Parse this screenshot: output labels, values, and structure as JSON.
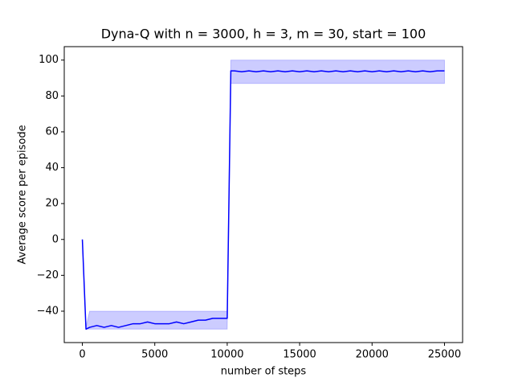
{
  "chart_data": {
    "type": "line",
    "title": "Dyna-Q with n = 3000, h = 3, m = 30, start = 100",
    "xlabel": "number of steps",
    "ylabel": "Average score per episode",
    "x": [
      0,
      250,
      500,
      1000,
      1500,
      2000,
      2500,
      3000,
      3500,
      4000,
      4500,
      5000,
      5500,
      6000,
      6500,
      7000,
      7500,
      8000,
      8500,
      9000,
      9500,
      10000,
      10250,
      10500,
      11000,
      11500,
      12000,
      12500,
      13000,
      13500,
      14000,
      14500,
      15000,
      15500,
      16000,
      16500,
      17000,
      17500,
      18000,
      18500,
      19000,
      19500,
      20000,
      20500,
      21000,
      21500,
      22000,
      22500,
      23000,
      23500,
      24000,
      24500,
      25000
    ],
    "series": [
      {
        "color": "#0000ff",
        "values": [
          0,
          -50,
          -49,
          -48,
          -49,
          -48,
          -49,
          -48,
          -47,
          -47,
          -46,
          -47,
          -47,
          -47,
          -46,
          -47,
          -46,
          -45,
          -45,
          -44,
          -44,
          -44,
          94,
          94,
          93.5,
          94,
          93.5,
          94,
          93.5,
          94,
          93.5,
          94,
          93.5,
          94,
          93.5,
          94,
          93.5,
          94,
          93.5,
          94,
          93.5,
          94,
          93.5,
          94,
          93.5,
          94,
          93.5,
          94,
          93.5,
          94,
          93.5,
          94,
          94
        ]
      }
    ],
    "band": {
      "color": "#0000ff",
      "lower": [
        0,
        -50,
        -50,
        -50,
        -50,
        -50,
        -50,
        -50,
        -50,
        -50,
        -50,
        -50,
        -50,
        -50,
        -50,
        -50,
        -50,
        -50,
        -50,
        -50,
        -50,
        -50,
        87,
        87,
        87,
        87,
        87,
        87,
        87,
        87,
        87,
        87,
        87,
        87,
        87,
        87,
        87,
        87,
        87,
        87,
        87,
        87,
        87,
        87,
        87,
        87,
        87,
        87,
        87,
        87,
        87,
        87,
        87
      ],
      "upper": [
        0,
        -49,
        -40,
        -40,
        -40,
        -40,
        -40,
        -40,
        -40,
        -40,
        -40,
        -40,
        -40,
        -40,
        -40,
        -40,
        -40,
        -40,
        -40,
        -40,
        -40,
        -40,
        100,
        100,
        100,
        100,
        100,
        100,
        100,
        100,
        100,
        100,
        100,
        100,
        100,
        100,
        100,
        100,
        100,
        100,
        100,
        100,
        100,
        100,
        100,
        100,
        100,
        100,
        100,
        100,
        100,
        100,
        100
      ]
    },
    "xlim": [
      -1250,
      26250
    ],
    "xticks": [
      0,
      5000,
      10000,
      15000,
      20000,
      25000
    ],
    "ylim": [
      -57.5,
      107.5
    ],
    "yticks": [
      {
        "value": -40,
        "label": "−40"
      },
      {
        "value": -20,
        "label": "−20"
      },
      0,
      20,
      40,
      60,
      80,
      100
    ]
  }
}
